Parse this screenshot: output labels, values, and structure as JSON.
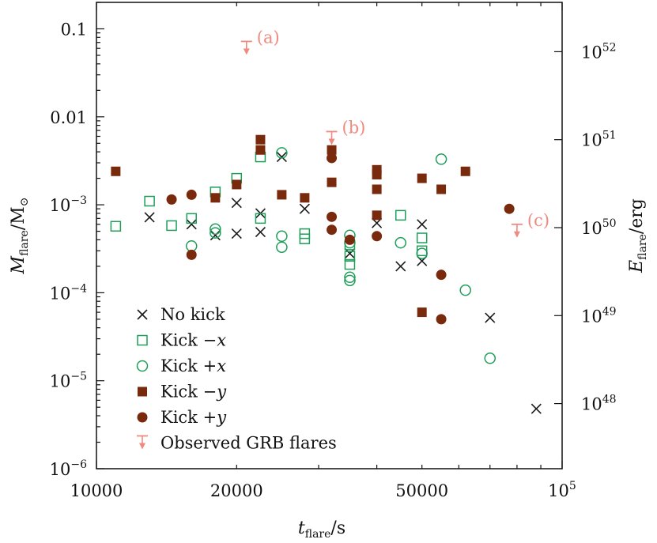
{
  "chart_data": {
    "type": "scatter",
    "x_scale": "log",
    "y_scale": "log",
    "xlim": [
      10000,
      100000
    ],
    "ylim": [
      1e-06,
      0.2
    ],
    "xlabel": {
      "main": "t",
      "sub": "flare",
      "unit": "/s"
    },
    "ylabel": {
      "main": "M",
      "sub": "flare",
      "unit": "/M",
      "unit_sub": "⊙"
    },
    "ylabel_right": {
      "main": "E",
      "sub": "flare",
      "unit": "/erg"
    },
    "x_ticks": [
      {
        "value": 10000,
        "label": "10000"
      },
      {
        "value": 20000,
        "label": "20000"
      },
      {
        "value": 50000,
        "label": "50000"
      },
      {
        "value": 100000,
        "label": "10",
        "sup": "5"
      }
    ],
    "y_ticks": [
      {
        "value": 0.1,
        "label": "0.1"
      },
      {
        "value": 0.01,
        "label": "0.01"
      },
      {
        "value": 0.001,
        "label": "10",
        "sup": "−3"
      },
      {
        "value": 0.0001,
        "label": "10",
        "sup": "−4"
      },
      {
        "value": 1e-05,
        "label": "10",
        "sup": "−5"
      },
      {
        "value": 1e-06,
        "label": "10",
        "sup": "−6"
      }
    ],
    "right_ticks": [
      {
        "value": 0.055,
        "label": "10",
        "sup": "52"
      },
      {
        "value": 0.0055,
        "label": "10",
        "sup": "51"
      },
      {
        "value": 0.00055,
        "label": "10",
        "sup": "50"
      },
      {
        "value": 5.5e-05,
        "label": "10",
        "sup": "49"
      },
      {
        "value": 5.5e-06,
        "label": "10",
        "sup": "48"
      }
    ],
    "legend": {
      "position": "bottom-left"
    },
    "series": [
      {
        "name": "No kick",
        "marker": "x",
        "color": "#1a1a1a",
        "points": [
          [
            13000,
            0.00072
          ],
          [
            16000,
            0.0006
          ],
          [
            18000,
            0.00045
          ],
          [
            20000,
            0.00105
          ],
          [
            20000,
            0.00047
          ],
          [
            22500,
            0.0008
          ],
          [
            22500,
            0.00049
          ],
          [
            25000,
            0.0035
          ],
          [
            28000,
            0.0009
          ],
          [
            35000,
            0.00028
          ],
          [
            40000,
            0.00062
          ],
          [
            45000,
            0.0002
          ],
          [
            50000,
            0.0006
          ],
          [
            50000,
            0.00023
          ],
          [
            70000,
            5.2e-05
          ],
          [
            88000,
            4.8e-06
          ]
        ]
      },
      {
        "name": "Kick −x",
        "marker": "open-square",
        "color": "#1f9e5a",
        "points": [
          [
            11000,
            0.00057
          ],
          [
            13000,
            0.0011
          ],
          [
            14500,
            0.00058
          ],
          [
            16000,
            0.0007
          ],
          [
            18000,
            0.0014
          ],
          [
            20000,
            0.002
          ],
          [
            22500,
            0.0035
          ],
          [
            22500,
            0.0007
          ],
          [
            28000,
            0.00047
          ],
          [
            28000,
            0.00041
          ],
          [
            35000,
            0.00035
          ],
          [
            35000,
            0.00026
          ],
          [
            35000,
            0.00021
          ],
          [
            45000,
            0.00076
          ],
          [
            50000,
            0.00042
          ],
          [
            50000,
            0.0003
          ]
        ]
      },
      {
        "name": "Kick +x",
        "marker": "open-circle",
        "color": "#1f9e5a",
        "points": [
          [
            16000,
            0.00034
          ],
          [
            18000,
            0.00053
          ],
          [
            18000,
            0.00048
          ],
          [
            25000,
            0.0039
          ],
          [
            25000,
            0.00044
          ],
          [
            25000,
            0.00033
          ],
          [
            35000,
            0.00045
          ],
          [
            35000,
            0.00037
          ],
          [
            35000,
            0.00015
          ],
          [
            35000,
            0.000138
          ],
          [
            45000,
            0.00037
          ],
          [
            50000,
            0.00028
          ],
          [
            55000,
            0.0033
          ],
          [
            62000,
            0.000107
          ],
          [
            70000,
            1.8e-05
          ]
        ]
      },
      {
        "name": "Kick −y",
        "marker": "filled-square",
        "color": "#7a2a0c",
        "points": [
          [
            11000,
            0.0024
          ],
          [
            18000,
            0.0012
          ],
          [
            20000,
            0.0017
          ],
          [
            22500,
            0.0055
          ],
          [
            22500,
            0.0042
          ],
          [
            25000,
            0.0013
          ],
          [
            28000,
            0.0012
          ],
          [
            32000,
            0.0042
          ],
          [
            32000,
            0.0018
          ],
          [
            40000,
            0.0025
          ],
          [
            40000,
            0.0022
          ],
          [
            40000,
            0.0015
          ],
          [
            40000,
            0.00076
          ],
          [
            50000,
            0.002
          ],
          [
            50000,
            6e-05
          ],
          [
            55000,
            0.0015
          ],
          [
            62000,
            0.0024
          ]
        ]
      },
      {
        "name": "Kick +y",
        "marker": "filled-circle",
        "color": "#7a2a0c",
        "points": [
          [
            14500,
            0.00115
          ],
          [
            16000,
            0.0013
          ],
          [
            16000,
            0.00027
          ],
          [
            32000,
            0.0034
          ],
          [
            32000,
            0.00073
          ],
          [
            32000,
            0.00052
          ],
          [
            35000,
            0.0004
          ],
          [
            40000,
            0.00044
          ],
          [
            55000,
            0.00016
          ],
          [
            55000,
            5e-05
          ],
          [
            77000,
            0.0009
          ]
        ]
      },
      {
        "name": "Observed GRB flares",
        "marker": "upper-limit",
        "color": "#f08a80",
        "points": [
          [
            21000,
            0.072,
            "(a)"
          ],
          [
            32000,
            0.0068,
            "(b)"
          ],
          [
            80000,
            0.0006,
            "(c)"
          ]
        ]
      }
    ]
  }
}
